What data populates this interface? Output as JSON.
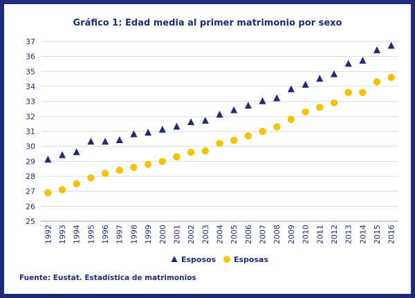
{
  "title": "Gráfico 1: Edad media al primer matrimonio por sexo",
  "source": "Fuente: Eustat. Estadística de matrimonios",
  "colors": {
    "frame": "#1f2a78",
    "esposos": "#1f2a78",
    "esposas": "#f5c400"
  },
  "chart_data": {
    "type": "scatter",
    "title": "Gráfico 1: Edad media al primer matrimonio por sexo",
    "xlabel": "",
    "ylabel": "",
    "ylim": [
      25,
      37
    ],
    "yticks": [
      "25",
      "26",
      "27",
      "28",
      "29",
      "30",
      "31",
      "32",
      "33",
      "34",
      "35",
      "36",
      "37"
    ],
    "categories": [
      "1992",
      "1993",
      "1994",
      "1995",
      "1996",
      "1997",
      "1998",
      "1999",
      "2000",
      "2001",
      "2002",
      "2003",
      "2004",
      "2005",
      "2006",
      "2007",
      "2008",
      "2009",
      "2010",
      "2011",
      "2012",
      "2013",
      "2014",
      "2015",
      "2016"
    ],
    "grid": true,
    "legend": "bottom",
    "series": [
      {
        "name": "Esposos",
        "marker": "triangle",
        "color": "#1f2a78",
        "values": [
          29.1,
          29.4,
          29.6,
          30.3,
          30.3,
          30.4,
          30.8,
          30.9,
          31.1,
          31.3,
          31.6,
          31.7,
          32.1,
          32.4,
          32.7,
          33.0,
          33.2,
          33.8,
          34.1,
          34.5,
          34.8,
          35.5,
          35.7,
          36.4,
          36.7
        ]
      },
      {
        "name": "Esposas",
        "marker": "circle",
        "color": "#f5c400",
        "values": [
          26.9,
          27.1,
          27.5,
          27.9,
          28.2,
          28.4,
          28.6,
          28.8,
          29.0,
          29.3,
          29.6,
          29.7,
          30.2,
          30.4,
          30.7,
          31.0,
          31.3,
          31.8,
          32.3,
          32.6,
          32.9,
          33.6,
          33.6,
          34.3,
          34.6
        ]
      }
    ]
  }
}
